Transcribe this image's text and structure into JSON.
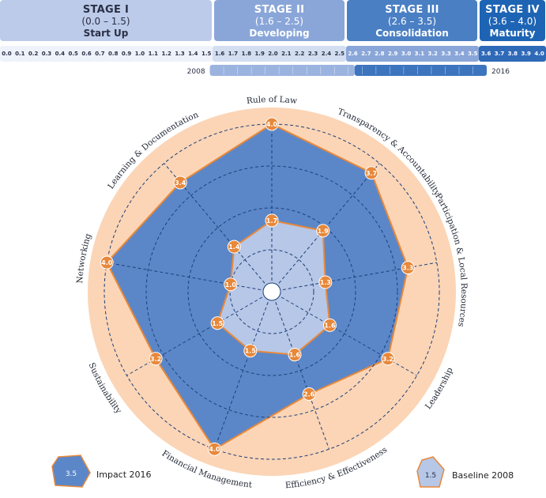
{
  "stages": [
    {
      "name": "STAGE I",
      "range": "(0.0 – 1.5)",
      "label": "Start Up",
      "bg": "#bccbe9",
      "fg": "#2a2f45"
    },
    {
      "name": "STAGE II",
      "range": "(1.6 – 2.5)",
      "label": "Developing",
      "bg": "#8aa6d9",
      "fg": "#ffffff"
    },
    {
      "name": "STAGE III",
      "range": "(2.6 – 3.5)",
      "label": "Consolidation",
      "bg": "#4a7fc4",
      "fg": "#ffffff"
    },
    {
      "name": "STAGE IV",
      "range": "(3.6 – 4.0)",
      "label": "Maturity",
      "bg": "#1e64b4",
      "fg": "#ffffff"
    }
  ],
  "scale_ticks": [
    "0.0",
    "0.1",
    "0.2",
    "0.3",
    "0.4",
    "0.5",
    "0.6",
    "0.7",
    "0.8",
    "0.9",
    "1.0",
    "1.1",
    "1.2",
    "1.3",
    "1.4",
    "1.5",
    "1.6",
    "1.7",
    "1.8",
    "1.9",
    "2.0",
    "2.1",
    "2.2",
    "2.3",
    "2.4",
    "2.5",
    "2.6",
    "2.7",
    "2.8",
    "2.9",
    "3.0",
    "3.1",
    "3.2",
    "3.3",
    "3.4",
    "3.5",
    "3.6",
    "3.7",
    "3.8",
    "3.9",
    "4.0"
  ],
  "timeline": {
    "start_label": "2008",
    "end_label": "2016",
    "start_value": 1.5,
    "end_value": 3.5
  },
  "chart_data": {
    "type": "radar",
    "axes": [
      "Rule of Law",
      "Transparency & Accountability",
      "Participation & Local Resources",
      "Leadership",
      "Efficiency & Effectiveness",
      "Financial Management",
      "Sustainability",
      "Networking",
      "Learning & Documentation"
    ],
    "series": [
      {
        "name": "Impact 2016",
        "values": [
          4.0,
          3.7,
          3.3,
          3.2,
          2.6,
          4.0,
          3.2,
          4.0,
          3.4
        ],
        "fill": "#5b87c8",
        "stroke": "#e8883a"
      },
      {
        "name": "Baseline 2008",
        "values": [
          1.7,
          1.9,
          1.3,
          1.6,
          1.6,
          1.5,
          1.5,
          1.0,
          1.4
        ],
        "fill": "#b6c7e7",
        "stroke": "#e8883a"
      }
    ],
    "range": [
      0,
      4
    ],
    "rings": [
      1,
      2,
      3,
      4
    ],
    "background": "#fbd5b6",
    "marker_color": "#e8883a"
  },
  "legend": [
    {
      "label": "Impact 2016",
      "sample_value": "3.5"
    },
    {
      "label": "Baseline 2008",
      "sample_value": "1.5"
    }
  ]
}
